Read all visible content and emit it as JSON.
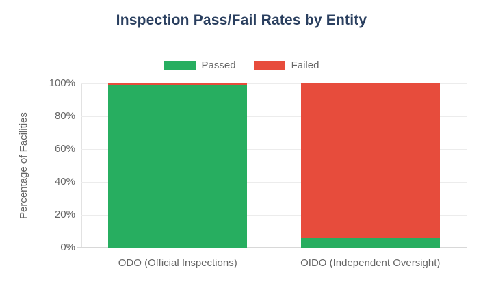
{
  "chart_data": {
    "type": "bar",
    "stacked": true,
    "title": "Inspection Pass/Fail Rates by Entity",
    "xlabel": "",
    "ylabel": "Percentage of Facilities",
    "categories": [
      "ODO (Official Inspections)",
      "OIDO (Independent Oversight)"
    ],
    "series": [
      {
        "name": "Passed",
        "color": "#27ae60",
        "values": [
          99,
          6
        ]
      },
      {
        "name": "Failed",
        "color": "#e74c3c",
        "values": [
          1,
          94
        ]
      }
    ],
    "ylim": [
      0,
      100
    ],
    "yticks": [
      0,
      20,
      40,
      60,
      80,
      100
    ],
    "ytick_labels": [
      "0%",
      "20%",
      "40%",
      "60%",
      "80%",
      "100%"
    ],
    "grid": true,
    "legend_position": "top"
  },
  "colors": {
    "title_text": "#2a3f5f",
    "axis_text": "#666666",
    "gridline": "#ececec",
    "axis_line": "#d8d8d8",
    "background": "#ffffff"
  }
}
